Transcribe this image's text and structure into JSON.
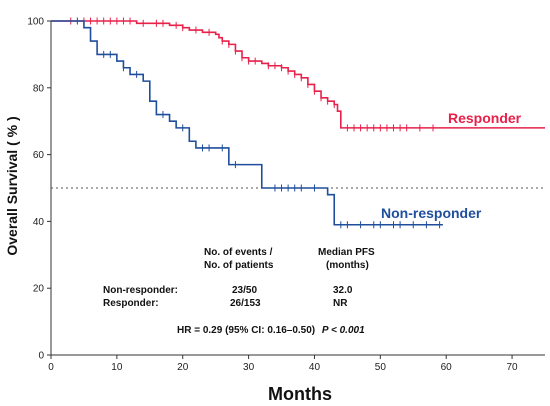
{
  "chart_data": {
    "type": "line",
    "subtype": "kaplan-meier",
    "xlabel": "Months",
    "ylabel": "Overall Survival ( % )",
    "xlim": [
      0,
      75
    ],
    "ylim": [
      0,
      100
    ],
    "xticks": [
      "0",
      "10",
      "20",
      "30",
      "40",
      "50",
      "60",
      "70"
    ],
    "yticks": [
      "0",
      "20",
      "40",
      "60",
      "80",
      "100"
    ],
    "grid": false,
    "reference_line": {
      "y": 50,
      "style": "dotted"
    },
    "series": [
      {
        "name": "Responder",
        "color": "#e8204a",
        "steps": [
          [
            0,
            100
          ],
          [
            12,
            100
          ],
          [
            13,
            99.3
          ],
          [
            18,
            98.7
          ],
          [
            20,
            98
          ],
          [
            21,
            97.3
          ],
          [
            23,
            96.6
          ],
          [
            25,
            96
          ],
          [
            25.5,
            95
          ],
          [
            26,
            94
          ],
          [
            27,
            93
          ],
          [
            28,
            91
          ],
          [
            29,
            89
          ],
          [
            30,
            88
          ],
          [
            32,
            87.3
          ],
          [
            33,
            86.6
          ],
          [
            35,
            86
          ],
          [
            36,
            85
          ],
          [
            37,
            84
          ],
          [
            38,
            83
          ],
          [
            39,
            81
          ],
          [
            40,
            79
          ],
          [
            41,
            77
          ],
          [
            42,
            76
          ],
          [
            43,
            75
          ],
          [
            43.5,
            73
          ],
          [
            44,
            68
          ],
          [
            75,
            68
          ]
        ],
        "censors": [
          3,
          5,
          6,
          7,
          8,
          9,
          10,
          11,
          12,
          14,
          16,
          17,
          19,
          20,
          22,
          24,
          26,
          27,
          28,
          29,
          30,
          31,
          33,
          34,
          35,
          36,
          37,
          38,
          39,
          40,
          41,
          42,
          43,
          45,
          46,
          47,
          48,
          49,
          50,
          51,
          52,
          53,
          54,
          56,
          58
        ]
      },
      {
        "name": "Non-responder",
        "color": "#1f4e9c",
        "steps": [
          [
            0,
            100
          ],
          [
            5,
            98
          ],
          [
            6,
            94
          ],
          [
            7,
            90
          ],
          [
            10,
            88
          ],
          [
            11,
            86
          ],
          [
            12,
            84
          ],
          [
            14,
            82
          ],
          [
            15,
            76
          ],
          [
            16,
            72
          ],
          [
            18,
            70
          ],
          [
            19,
            68
          ],
          [
            21,
            64
          ],
          [
            22,
            62
          ],
          [
            27,
            57
          ],
          [
            32,
            50
          ],
          [
            42,
            48
          ],
          [
            43,
            39
          ],
          [
            59.5,
            39
          ]
        ],
        "censors": [
          4,
          8,
          9,
          11,
          13,
          17,
          20,
          23,
          24,
          26,
          28,
          34,
          35,
          36,
          37,
          38,
          40,
          44,
          45,
          47,
          49,
          50,
          52,
          53,
          55,
          57,
          59
        ]
      }
    ],
    "annotations": {
      "hdr_events_1": "No. of events /",
      "hdr_events_2": "No. of patients",
      "hdr_median_1": "Median  PFS",
      "hdr_median_2": "(months)",
      "nonresp_label": "Non-responder:",
      "nonresp_events": "23/50",
      "nonresp_median": "32.0",
      "resp_label": "Responder:",
      "resp_events": "26/153",
      "resp_median": "NR",
      "hr_main": "HR = 0.29 (95% CI: 0.16–0.50)",
      "hr_p": "P < 0.001"
    }
  }
}
